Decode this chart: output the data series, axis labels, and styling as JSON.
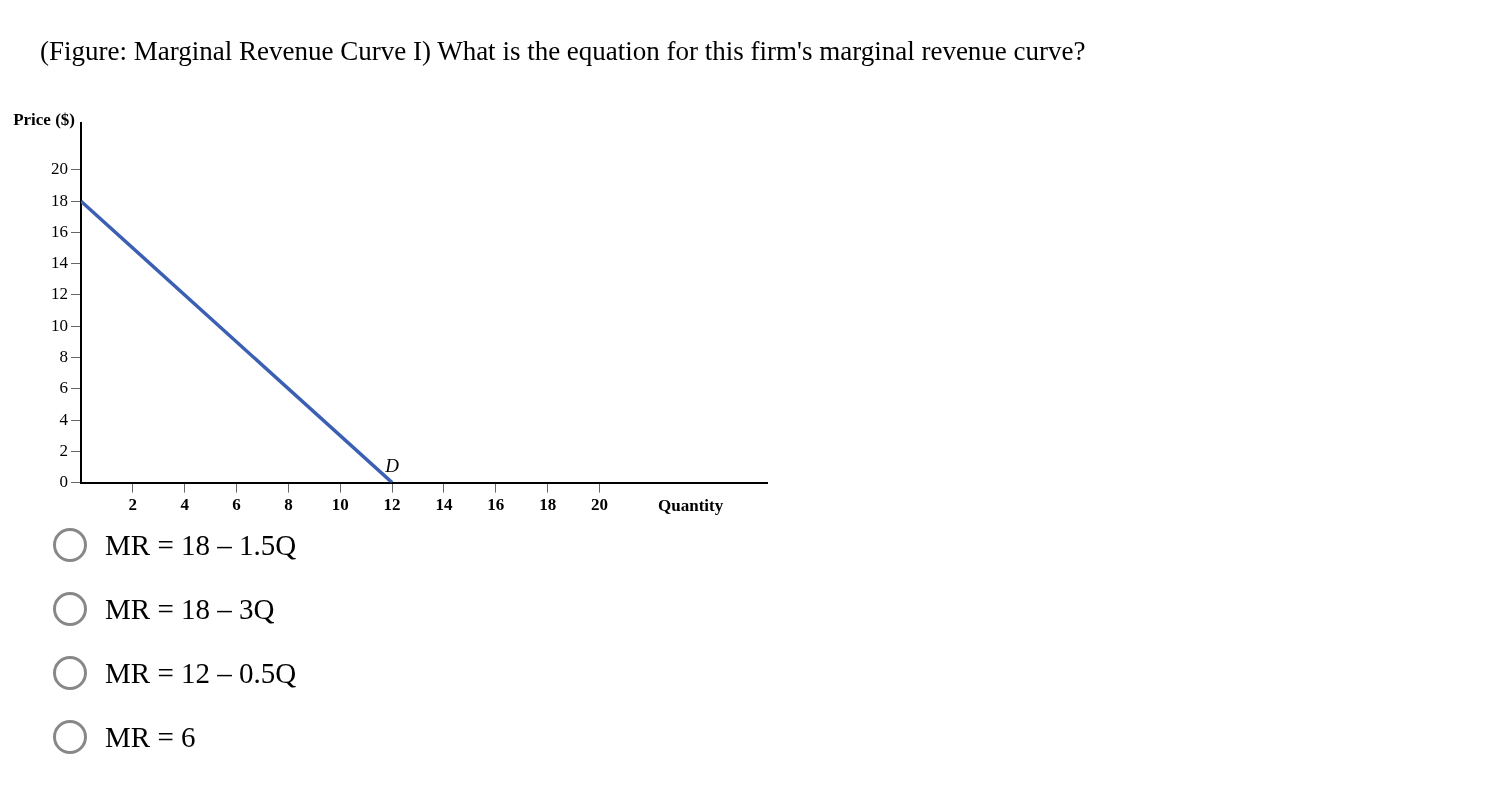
{
  "chart_data": {
    "type": "line",
    "title": "(Figure: Marginal Revenue Curve I) What is the equation for this firm's marginal revenue curve?",
    "xlabel": "Quantity",
    "ylabel": "Price ($)",
    "x": [
      0,
      12
    ],
    "series": [
      {
        "color": "#3b5fb3",
        "values": [
          18,
          0
        ]
      }
    ],
    "xlim": [
      0,
      26.5
    ],
    "ylim": [
      0,
      23
    ],
    "xticks": [
      2,
      4,
      6,
      8,
      10,
      12,
      14,
      16,
      18,
      20
    ],
    "yticks": [
      0,
      2,
      4,
      6,
      8,
      10,
      12,
      14,
      16,
      18,
      20
    ],
    "grid": false,
    "legend": false,
    "marker": "none",
    "line_style": "solid",
    "annotations": [
      {
        "text": "D",
        "x": 12,
        "y": 0
      },
      "MR = 18 – 1.5Q",
      "MR = 18 – 3Q",
      "MR = 12 – 0.5Q",
      "MR = 6"
    ]
  }
}
